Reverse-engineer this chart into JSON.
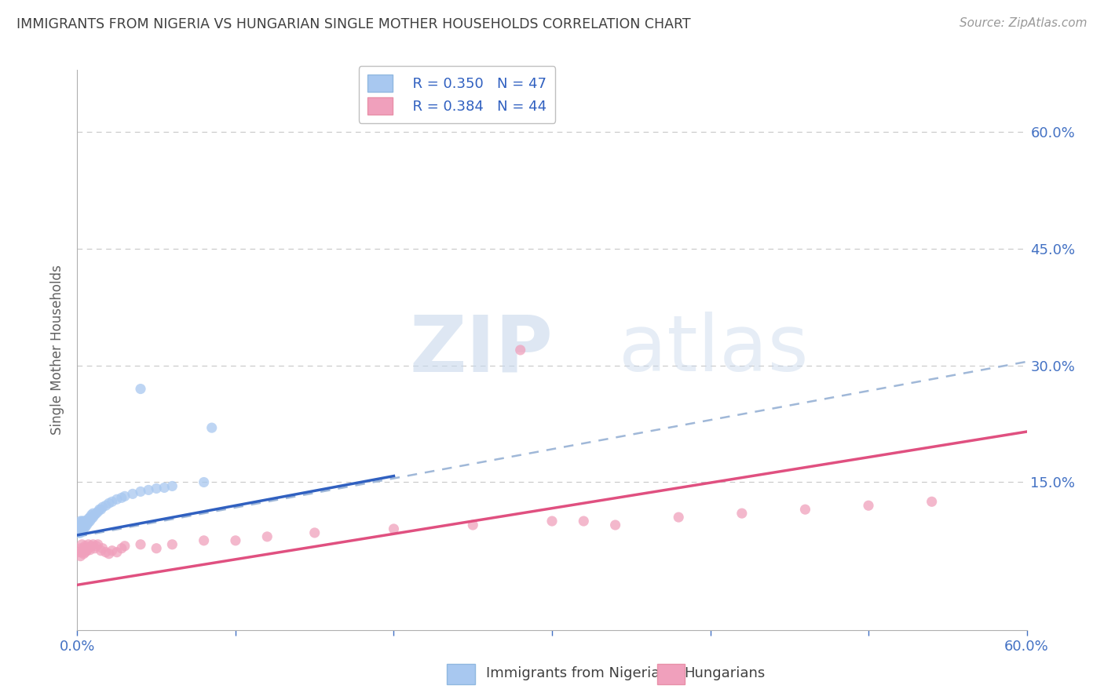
{
  "title": "IMMIGRANTS FROM NIGERIA VS HUNGARIAN SINGLE MOTHER HOUSEHOLDS CORRELATION CHART",
  "source": "Source: ZipAtlas.com",
  "ylabel": "Single Mother Households",
  "xlim": [
    0.0,
    0.6
  ],
  "ylim": [
    -0.04,
    0.68
  ],
  "ytick_positions": [
    0.15,
    0.3,
    0.45,
    0.6
  ],
  "ytick_labels": [
    "15.0%",
    "30.0%",
    "45.0%",
    "60.0%"
  ],
  "xtick_positions": [
    0.0,
    0.1,
    0.2,
    0.3,
    0.4,
    0.5,
    0.6
  ],
  "xtick_labels": [
    "0.0%",
    "",
    "",
    "",
    "",
    "",
    "60.0%"
  ],
  "legend_label1": "Immigrants from Nigeria",
  "legend_label2": "Hungarians",
  "R1": 0.35,
  "N1": 47,
  "R2": 0.384,
  "N2": 44,
  "color1": "#a8c8f0",
  "color2": "#f0a0bc",
  "trendline1_color": "#3060c0",
  "trendline2_color": "#e05080",
  "dashed_line_color": "#a0b8d8",
  "watermark_color": "#d0e4f5",
  "background_color": "#ffffff",
  "title_color": "#404040",
  "tick_color": "#4472c4",
  "grid_color": "#c8c8c8",
  "nigeria_x": [
    0.001,
    0.001,
    0.002,
    0.002,
    0.002,
    0.002,
    0.003,
    0.003,
    0.003,
    0.003,
    0.004,
    0.004,
    0.004,
    0.005,
    0.005,
    0.005,
    0.006,
    0.006,
    0.007,
    0.007,
    0.008,
    0.008,
    0.009,
    0.009,
    0.01,
    0.01,
    0.011,
    0.012,
    0.013,
    0.014,
    0.015,
    0.016,
    0.018,
    0.02,
    0.022,
    0.025,
    0.028,
    0.03,
    0.035,
    0.04,
    0.045,
    0.05,
    0.055,
    0.06,
    0.08,
    0.04,
    0.085
  ],
  "nigeria_y": [
    0.085,
    0.09,
    0.085,
    0.09,
    0.095,
    0.1,
    0.088,
    0.092,
    0.095,
    0.1,
    0.09,
    0.095,
    0.1,
    0.092,
    0.096,
    0.1,
    0.095,
    0.1,
    0.098,
    0.103,
    0.1,
    0.105,
    0.103,
    0.108,
    0.105,
    0.11,
    0.108,
    0.11,
    0.112,
    0.115,
    0.115,
    0.118,
    0.12,
    0.123,
    0.125,
    0.128,
    0.13,
    0.132,
    0.135,
    0.138,
    0.14,
    0.142,
    0.143,
    0.145,
    0.15,
    0.27,
    0.22
  ],
  "hungarian_x": [
    0.001,
    0.002,
    0.002,
    0.003,
    0.003,
    0.004,
    0.004,
    0.005,
    0.005,
    0.006,
    0.007,
    0.007,
    0.008,
    0.009,
    0.01,
    0.011,
    0.012,
    0.013,
    0.015,
    0.016,
    0.018,
    0.02,
    0.022,
    0.025,
    0.028,
    0.03,
    0.04,
    0.05,
    0.06,
    0.08,
    0.1,
    0.12,
    0.15,
    0.2,
    0.25,
    0.3,
    0.32,
    0.34,
    0.38,
    0.42,
    0.46,
    0.5,
    0.54,
    0.28
  ],
  "hungarian_y": [
    0.06,
    0.055,
    0.065,
    0.06,
    0.07,
    0.058,
    0.065,
    0.06,
    0.068,
    0.062,
    0.065,
    0.07,
    0.063,
    0.068,
    0.07,
    0.065,
    0.068,
    0.07,
    0.062,
    0.065,
    0.06,
    0.058,
    0.062,
    0.06,
    0.065,
    0.068,
    0.07,
    0.065,
    0.07,
    0.075,
    0.075,
    0.08,
    0.085,
    0.09,
    0.095,
    0.1,
    0.1,
    0.095,
    0.105,
    0.11,
    0.115,
    0.12,
    0.125,
    0.32
  ],
  "trendline1_x": [
    0.0,
    0.2
  ],
  "trendline1_y": [
    0.082,
    0.158
  ],
  "trendline2_x": [
    0.0,
    0.6
  ],
  "trendline2_y": [
    0.018,
    0.215
  ],
  "dashed_line_x": [
    0.0,
    0.6
  ],
  "dashed_line_y": [
    0.08,
    0.305
  ]
}
